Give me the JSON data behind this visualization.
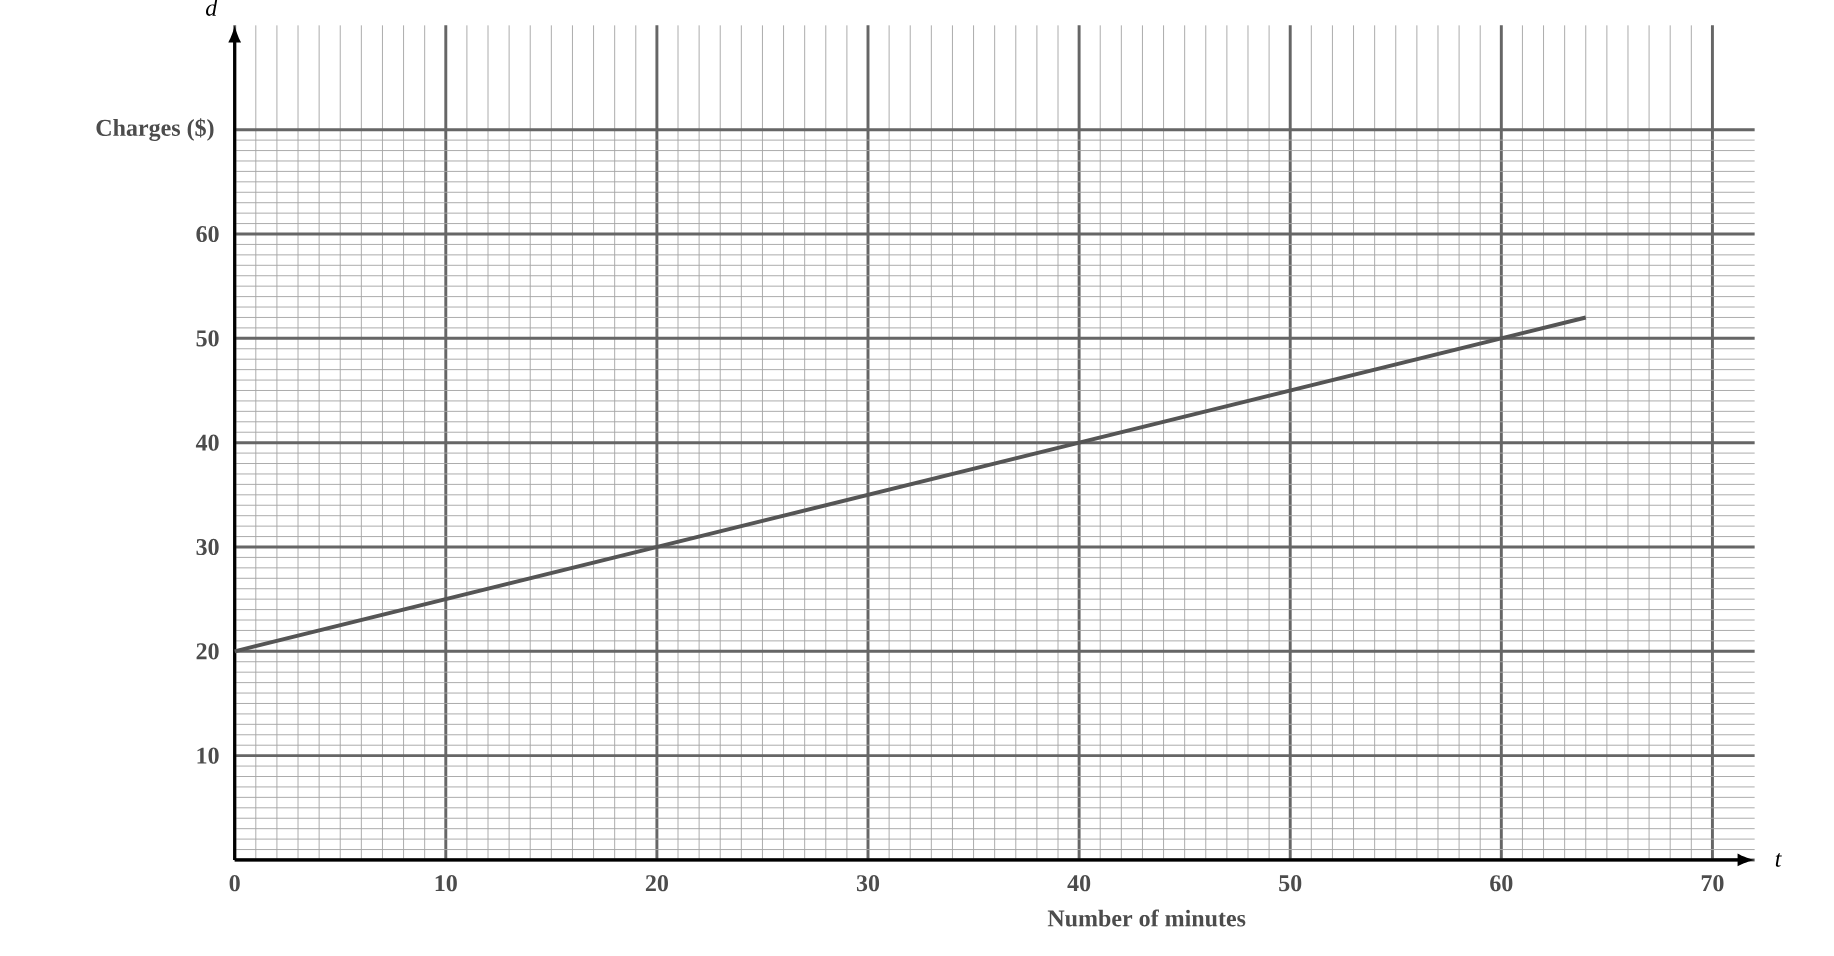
{
  "chart_data": {
    "type": "line",
    "xlabel": "Number of minutes",
    "ylabel": "Charges ($)",
    "annotations": [
      "d",
      "t"
    ],
    "x": [
      0,
      64
    ],
    "series": [
      {
        "color": "#555555",
        "values": [
          20,
          52
        ]
      }
    ],
    "xlim": [
      0,
      72
    ],
    "ylim": [
      0,
      80
    ],
    "xticks": [
      0,
      10,
      20,
      30,
      40,
      50,
      60,
      70
    ],
    "yticks": [
      {
        "value": 0,
        "label": null
      },
      10,
      20,
      30,
      40,
      50,
      60,
      {
        "value": 70,
        "label": null
      }
    ],
    "grid": true,
    "marker": "none",
    "line_style": "solid"
  }
}
